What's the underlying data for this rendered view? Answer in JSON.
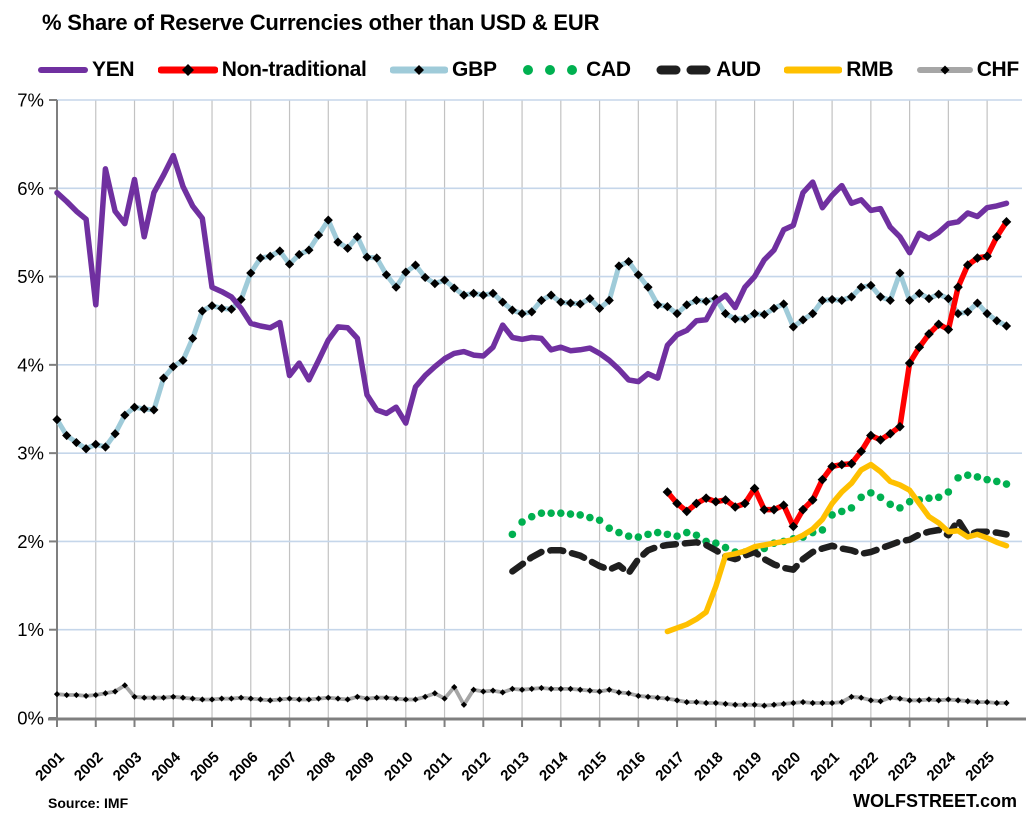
{
  "title": "% Share of Reserve Currencies other than USD & EUR",
  "footer": {
    "source": "Source: IMF",
    "brand": "WOLFSTREET.com"
  },
  "colors": {
    "marker": "#000000",
    "h_grid": "#c5d6ea",
    "v_grid": "#c2c2c2",
    "axis": "#7f7f7f",
    "text": "#000000"
  },
  "chart_data": {
    "type": "line",
    "title": "% Share of Reserve Currencies other than USD & EUR",
    "xlabel": "",
    "ylabel": "",
    "grid": "on",
    "legend_position": "top",
    "ylim": [
      0,
      7
    ],
    "y_tick_labels": [
      "0%",
      "1%",
      "2%",
      "3%",
      "4%",
      "5%",
      "6%",
      "7%"
    ],
    "x_tick_labels": [
      "2001",
      "2002",
      "2003",
      "2004",
      "2005",
      "2006",
      "2007",
      "2008",
      "2009",
      "2010",
      "2011",
      "2012",
      "2013",
      "2014",
      "2015",
      "2016",
      "2017",
      "2018",
      "2019",
      "2020",
      "2021",
      "2022",
      "2023",
      "2024",
      "2025"
    ],
    "x_unit": "quarterly, year.fraction",
    "series": [
      {
        "name": "YEN",
        "color": "#7030A0",
        "style": "line",
        "marker": "none",
        "start": 2001.0,
        "values": [
          5.95,
          5.85,
          5.74,
          5.65,
          4.68,
          6.22,
          5.74,
          5.6,
          6.1,
          5.45,
          5.95,
          6.15,
          6.37,
          6.02,
          5.8,
          5.66,
          4.88,
          4.83,
          4.77,
          4.64,
          4.47,
          4.44,
          4.42,
          4.48,
          3.88,
          4.02,
          3.83,
          4.05,
          4.28,
          4.43,
          4.42,
          4.3,
          3.66,
          3.49,
          3.45,
          3.52,
          3.34,
          3.75,
          3.88,
          3.98,
          4.07,
          4.13,
          4.15,
          4.11,
          4.1,
          4.2,
          4.45,
          4.31,
          4.29,
          4.31,
          4.3,
          4.17,
          4.2,
          4.16,
          4.17,
          4.19,
          4.13,
          4.05,
          3.95,
          3.83,
          3.81,
          3.9,
          3.85,
          4.22,
          4.34,
          4.39,
          4.5,
          4.51,
          4.71,
          4.79,
          4.65,
          4.88,
          5.0,
          5.19,
          5.3,
          5.53,
          5.58,
          5.95,
          6.07,
          5.78,
          5.92,
          6.03,
          5.83,
          5.87,
          5.75,
          5.77,
          5.56,
          5.45,
          5.27,
          5.49,
          5.43,
          5.5,
          5.6,
          5.62,
          5.72,
          5.68,
          5.78,
          5.8,
          5.83
        ]
      },
      {
        "name": "Non-traditional",
        "color": "#FF0000",
        "style": "line",
        "marker": "diamond",
        "start": 2016.75,
        "values": [
          2.56,
          2.43,
          2.34,
          2.43,
          2.49,
          2.45,
          2.47,
          2.39,
          2.43,
          2.6,
          2.36,
          2.36,
          2.41,
          2.17,
          2.36,
          2.47,
          2.7,
          2.85,
          2.87,
          2.88,
          3.02,
          3.2,
          3.15,
          3.22,
          3.3,
          4.02,
          4.2,
          4.35,
          4.46,
          4.4,
          4.88,
          5.13,
          5.21,
          5.23,
          5.45,
          5.62
        ]
      },
      {
        "name": "GBP",
        "color": "#9FCBD9",
        "style": "line",
        "marker": "diamond",
        "start": 2001.0,
        "values": [
          3.38,
          3.2,
          3.12,
          3.05,
          3.1,
          3.07,
          3.22,
          3.43,
          3.52,
          3.5,
          3.49,
          3.85,
          3.98,
          4.05,
          4.3,
          4.61,
          4.67,
          4.64,
          4.63,
          4.74,
          5.04,
          5.21,
          5.23,
          5.29,
          5.14,
          5.25,
          5.3,
          5.47,
          5.64,
          5.39,
          5.32,
          5.45,
          5.22,
          5.21,
          5.02,
          4.88,
          5.05,
          5.13,
          4.99,
          4.92,
          4.96,
          4.87,
          4.79,
          4.81,
          4.79,
          4.81,
          4.71,
          4.62,
          4.58,
          4.6,
          4.73,
          4.79,
          4.71,
          4.7,
          4.69,
          4.75,
          4.64,
          4.73,
          5.12,
          5.17,
          5.02,
          4.88,
          4.68,
          4.66,
          4.58,
          4.68,
          4.73,
          4.72,
          4.75,
          4.58,
          4.52,
          4.52,
          4.58,
          4.57,
          4.64,
          4.69,
          4.43,
          4.51,
          4.58,
          4.73,
          4.74,
          4.73,
          4.77,
          4.88,
          4.9,
          4.77,
          4.73,
          5.04,
          4.73,
          4.81,
          4.75,
          4.8,
          4.75,
          4.58,
          4.6,
          4.7,
          4.58,
          4.5,
          4.44
        ]
      },
      {
        "name": "CAD",
        "color": "#00B050",
        "style": "dots",
        "marker": "dot",
        "start": 2012.75,
        "values": [
          2.08,
          2.22,
          2.28,
          2.32,
          2.32,
          2.32,
          2.31,
          2.3,
          2.27,
          2.24,
          2.15,
          2.1,
          2.06,
          2.05,
          2.08,
          2.1,
          2.08,
          2.06,
          2.1,
          2.07,
          2.0,
          1.98,
          1.93,
          1.88,
          1.88,
          1.9,
          1.92,
          1.98,
          2.0,
          2.03,
          2.05,
          2.1,
          2.13,
          2.3,
          2.34,
          2.38,
          2.5,
          2.55,
          2.5,
          2.42,
          2.38,
          2.45,
          2.47,
          2.49,
          2.5,
          2.56,
          2.72,
          2.75,
          2.73,
          2.7,
          2.68,
          2.65
        ]
      },
      {
        "name": "AUD",
        "color": "#1F1F1F",
        "style": "dashes",
        "marker": "none",
        "start": 2012.75,
        "values": [
          1.66,
          1.74,
          1.82,
          1.88,
          1.9,
          1.9,
          1.87,
          1.84,
          1.78,
          1.72,
          1.68,
          1.73,
          1.64,
          1.8,
          1.9,
          1.94,
          1.96,
          1.97,
          1.98,
          1.99,
          1.96,
          1.9,
          1.83,
          1.8,
          1.84,
          1.88,
          1.8,
          1.74,
          1.7,
          1.68,
          1.8,
          1.88,
          1.92,
          1.95,
          1.92,
          1.9,
          1.86,
          1.88,
          1.92,
          1.96,
          2.0,
          2.02,
          2.08,
          2.11,
          2.13,
          2.07,
          2.24,
          2.07,
          2.11,
          2.11,
          2.1,
          2.08
        ]
      },
      {
        "name": "RMB",
        "color": "#FFC000",
        "style": "line",
        "marker": "none",
        "start": 2016.75,
        "values": [
          0.98,
          1.02,
          1.06,
          1.12,
          1.2,
          1.49,
          1.84,
          1.86,
          1.89,
          1.94,
          1.96,
          1.98,
          2.0,
          2.02,
          2.07,
          2.14,
          2.25,
          2.43,
          2.56,
          2.66,
          2.81,
          2.87,
          2.79,
          2.68,
          2.64,
          2.58,
          2.43,
          2.28,
          2.21,
          2.11,
          2.12,
          2.05,
          2.08,
          2.04,
          1.99,
          1.95
        ]
      },
      {
        "name": "CHF",
        "color": "#A6A6A6",
        "style": "line",
        "marker": "diamond",
        "start": 2001.0,
        "values": [
          0.27,
          0.26,
          0.26,
          0.25,
          0.26,
          0.28,
          0.3,
          0.37,
          0.24,
          0.23,
          0.23,
          0.23,
          0.24,
          0.23,
          0.22,
          0.21,
          0.21,
          0.22,
          0.22,
          0.23,
          0.22,
          0.21,
          0.2,
          0.21,
          0.22,
          0.21,
          0.21,
          0.22,
          0.23,
          0.22,
          0.21,
          0.24,
          0.22,
          0.23,
          0.23,
          0.22,
          0.21,
          0.21,
          0.24,
          0.28,
          0.22,
          0.35,
          0.15,
          0.32,
          0.3,
          0.31,
          0.29,
          0.33,
          0.32,
          0.33,
          0.34,
          0.33,
          0.33,
          0.33,
          0.32,
          0.31,
          0.3,
          0.32,
          0.29,
          0.28,
          0.25,
          0.24,
          0.23,
          0.22,
          0.2,
          0.18,
          0.18,
          0.17,
          0.17,
          0.16,
          0.15,
          0.15,
          0.15,
          0.14,
          0.15,
          0.16,
          0.17,
          0.18,
          0.17,
          0.17,
          0.17,
          0.18,
          0.24,
          0.23,
          0.2,
          0.19,
          0.23,
          0.22,
          0.2,
          0.2,
          0.21,
          0.2,
          0.21,
          0.2,
          0.19,
          0.18,
          0.18,
          0.17,
          0.17
        ]
      }
    ]
  }
}
